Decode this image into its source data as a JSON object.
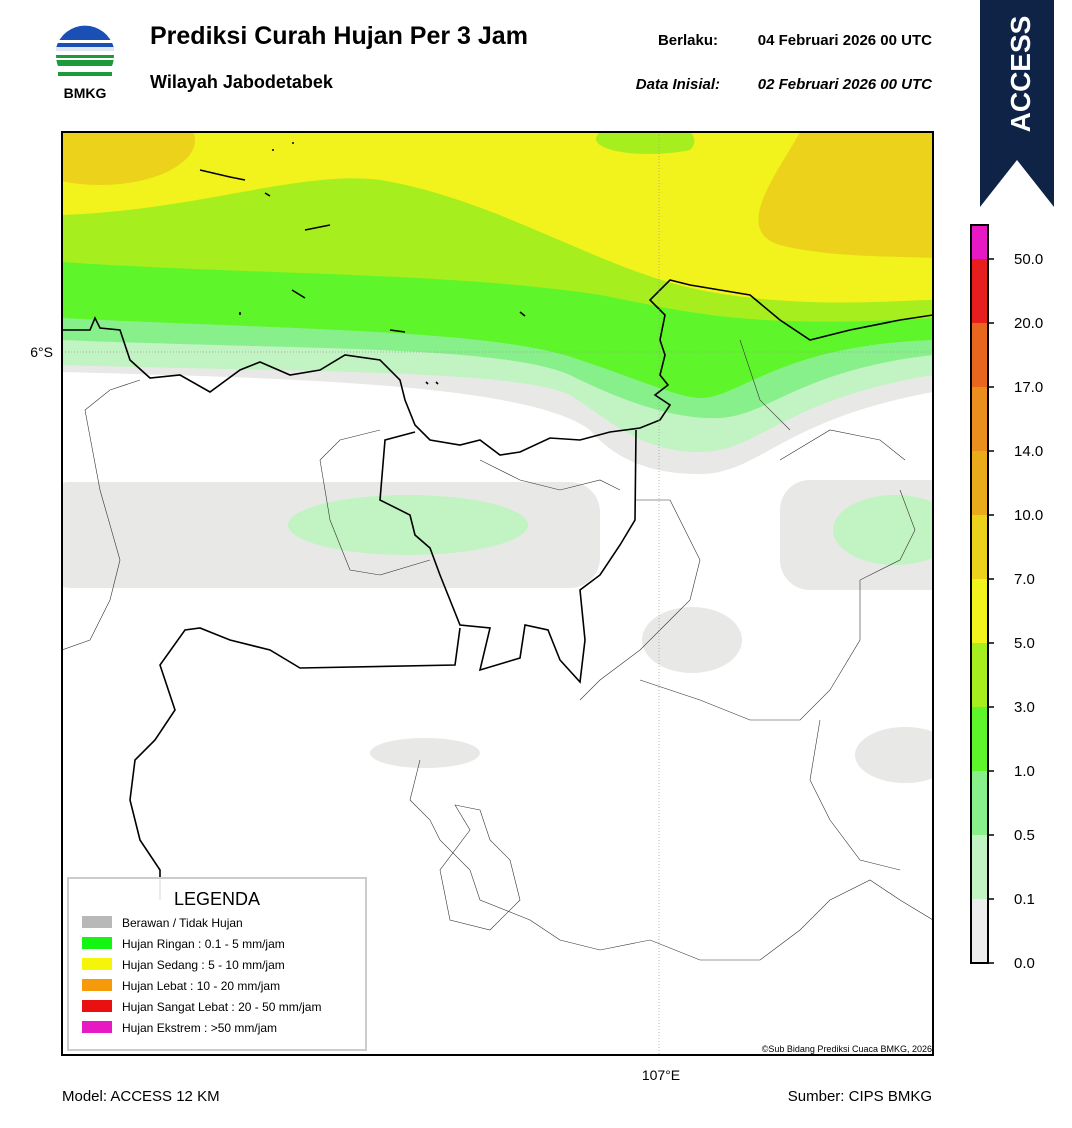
{
  "header": {
    "logo_text": "BMKG",
    "title": "Prediksi Curah Hujan Per 3 Jam",
    "subtitle": "Wilayah Jabodetabek",
    "valid_label": "Berlaku:",
    "valid_date": "04 Februari 2026 00 UTC",
    "init_label": "Data Inisial:",
    "init_date": "02 Februari 2026 00 UTC",
    "badge": "ACCESS"
  },
  "map": {
    "lat_label": "6°S",
    "lon_label": "107°E",
    "credit": "©Sub Bidang Prediksi Cuaca BMKG, 2026"
  },
  "legend": {
    "title": "LEGENDA",
    "items": [
      "Berawan / Tidak Hujan",
      "Hujan Ringan : 0.1 - 5 mm/jam",
      "Hujan Sedang : 5 - 10 mm/jam",
      "Hujan Lebat : 10 - 20 mm/jam",
      "Hujan Sangat Lebat : 20 - 50 mm/jam",
      "Hujan Ekstrem : >50 mm/jam"
    ]
  },
  "colorbar": {
    "labels": [
      "0.0",
      "0.1",
      "0.5",
      "1.0",
      "3.0",
      "5.0",
      "7.0",
      "10.0",
      "14.0",
      "17.0",
      "20.0",
      "50.0"
    ]
  },
  "footer": {
    "model": "Model: ACCESS 12 KM",
    "source": "Sumber: CIPS BMKG"
  }
}
